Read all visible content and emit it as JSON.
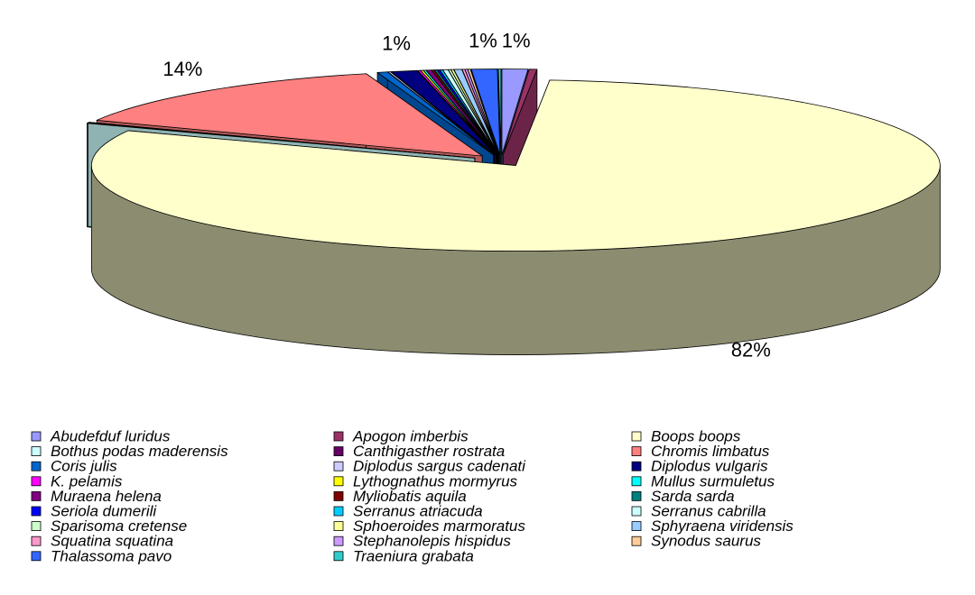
{
  "chart_data": {
    "type": "pie3d",
    "categories": [
      "Abudefduf luridus",
      "Apogon imberbis",
      "Boops boops",
      "Bothus podas maderensis",
      "Canthigasther rostrata",
      "Chromis limbatus",
      "Coris julis",
      "Diplodus sargus cadenati",
      "Diplodus vulgaris",
      "K. pelamis",
      "Lythognathus mormyrus",
      "Mullus surmuletus",
      "Muraena helena",
      "Myliobatis aquila",
      "Sarda sarda",
      "Seriola dumerili",
      "Serranus atriacuda",
      "Serranus cabrilla",
      "Sparisoma cretense",
      "Sphoeroides marmoratus",
      "Sphyraena viridensis",
      "Squatina squatina",
      "Stephanolepis hispidus",
      "Synodus saurus",
      "Thalassoma pavo",
      "Traeniura grabata"
    ],
    "values": [
      1,
      0.3,
      82,
      0.1,
      0.1,
      14,
      0.4,
      0.1,
      1,
      0.1,
      0.1,
      0.1,
      0.2,
      0.1,
      0.1,
      0.1,
      0.1,
      0.2,
      0.1,
      0.1,
      0.3,
      0.1,
      0.1,
      0.1,
      1,
      0.1
    ],
    "value_labels": [
      "1%",
      null,
      "82%",
      null,
      null,
      "14%",
      null,
      null,
      "1%",
      null,
      null,
      null,
      null,
      null,
      null,
      null,
      null,
      null,
      null,
      null,
      null,
      null,
      null,
      null,
      "1%",
      null
    ],
    "colors": [
      "#9999FF",
      "#993366",
      "#FFFFCC",
      "#CCFFFF",
      "#660066",
      "#FF8080",
      "#0066CC",
      "#CCCCFF",
      "#000080",
      "#FF00FF",
      "#FFFF00",
      "#00FFFF",
      "#800080",
      "#800000",
      "#008080",
      "#0000FF",
      "#00CCFF",
      "#CCFFFF",
      "#CCFFCC",
      "#FFFF99",
      "#99CCFF",
      "#FF99CC",
      "#CC99FF",
      "#FFCC99",
      "#3366FF",
      "#33CCCC"
    ],
    "legend": "bottom"
  }
}
